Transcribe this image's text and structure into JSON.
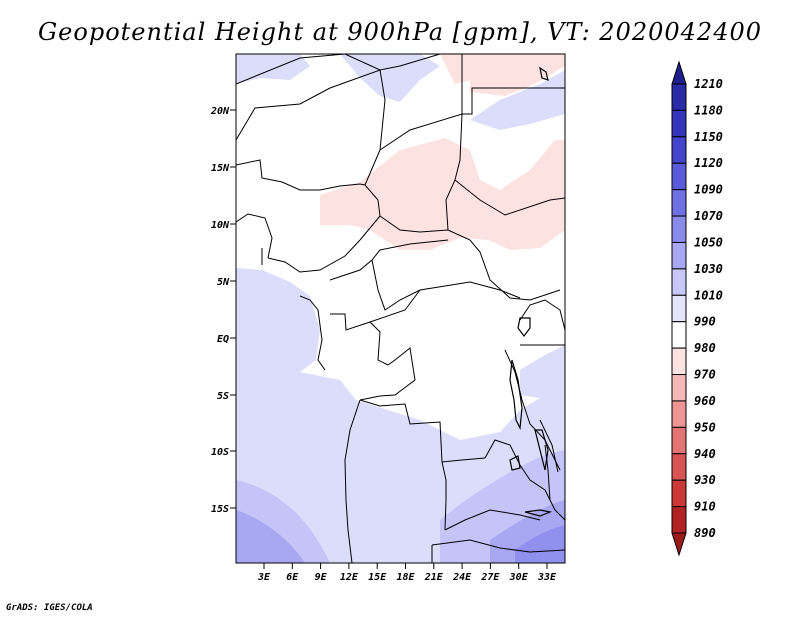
{
  "title": "Geopotential Height at 900hPa [gpm], VT: 2020042400",
  "credit": "GrADS: IGES/COLA",
  "map": {
    "lon_labels": [
      "3E",
      "6E",
      "9E",
      "12E",
      "15E",
      "18E",
      "21E",
      "24E",
      "27E",
      "30E",
      "33E"
    ],
    "lat_labels": [
      "20N",
      "15N",
      "10N",
      "5N",
      "EQ",
      "5S",
      "10S",
      "15S"
    ]
  },
  "colorbar": {
    "levels": [
      "1210",
      "1180",
      "1150",
      "1120",
      "1090",
      "1070",
      "1050",
      "1030",
      "1010",
      "990",
      "980",
      "970",
      "960",
      "950",
      "940",
      "930",
      "910",
      "890"
    ],
    "colors": [
      "#1e1e8c",
      "#2a2aa6",
      "#3535bb",
      "#4444cc",
      "#5a5ada",
      "#7070e4",
      "#8a8aec",
      "#a8a8f2",
      "#c8c8f8",
      "#e4e4fb",
      "#ffffff",
      "#fde2e2",
      "#f5b8b8",
      "#ed9595",
      "#e37474",
      "#d95555",
      "#cc3838",
      "#b22222",
      "#9b1b1b"
    ]
  }
}
